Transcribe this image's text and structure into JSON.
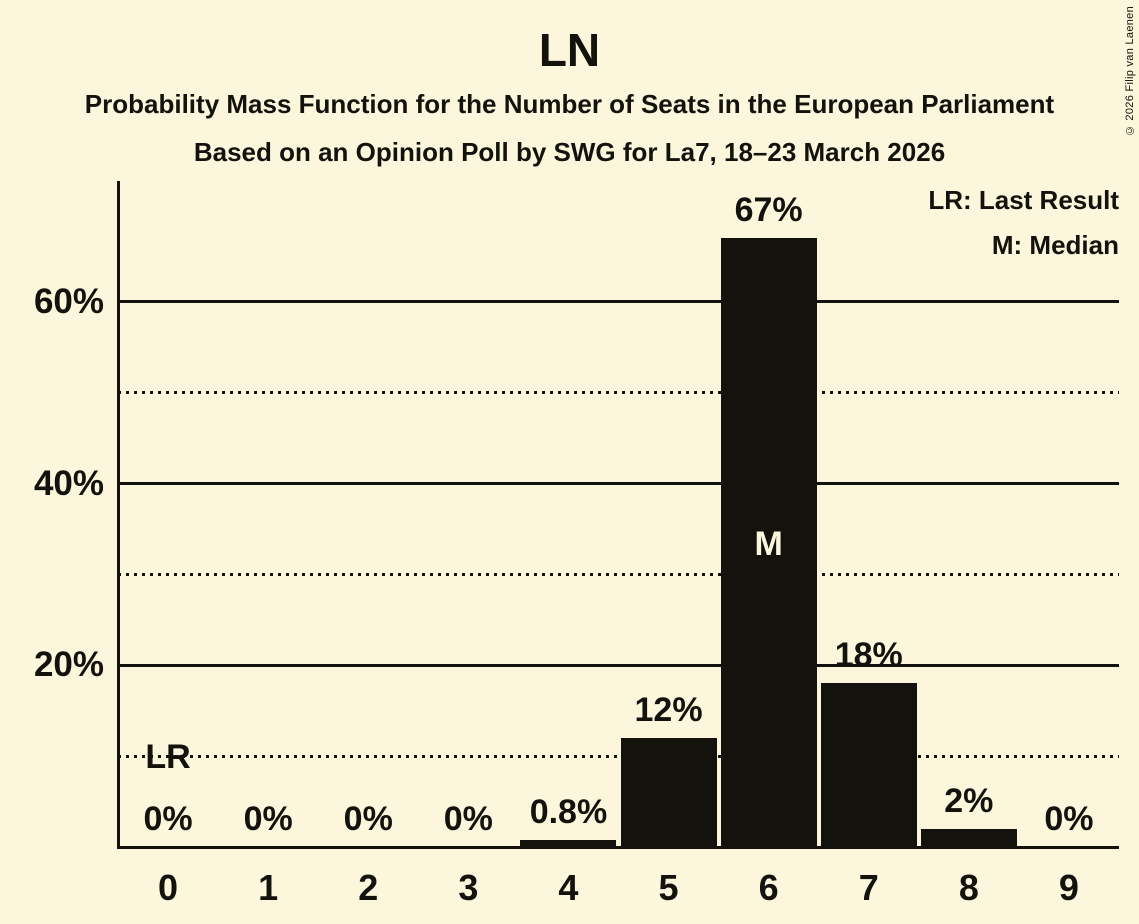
{
  "header": {
    "title": "LN",
    "subtitle": "Probability Mass Function for the Number of Seats in the European Parliament",
    "poll_info": "Based on an Opinion Poll by SWG for La7, 18–23 March 2026"
  },
  "legend": {
    "lr": "LR: Last Result",
    "m": "M: Median"
  },
  "copyright": "© 2026 Filip van Laenen",
  "chart_data": {
    "type": "bar",
    "title": "LN",
    "xlabel": "",
    "ylabel": "",
    "categories": [
      "0",
      "1",
      "2",
      "3",
      "4",
      "5",
      "6",
      "7",
      "8",
      "9"
    ],
    "values": [
      0,
      0,
      0,
      0,
      0.8,
      12,
      67,
      18,
      2,
      0
    ],
    "bar_labels": [
      "0%",
      "0%",
      "0%",
      "0%",
      "0.8%",
      "12%",
      "67%",
      "18%",
      "2%",
      "0%"
    ],
    "ylim": [
      0,
      73.3
    ],
    "yticks": [
      {
        "value": 20,
        "label": "20%"
      },
      {
        "value": 40,
        "label": "40%"
      },
      {
        "value": 60,
        "label": "60%"
      }
    ],
    "gridlines": {
      "solid": [
        20,
        40,
        60
      ],
      "dotted": [
        10,
        30,
        50
      ]
    },
    "legend_position": "top-right",
    "annotations": [
      {
        "text": "LR",
        "category": "0"
      },
      {
        "text": "M",
        "category": "6"
      }
    ],
    "colors": {
      "background": "#FBF6DC",
      "bar": "#14120C",
      "text": "#14120C",
      "median_label": "#FBF6DC"
    }
  }
}
